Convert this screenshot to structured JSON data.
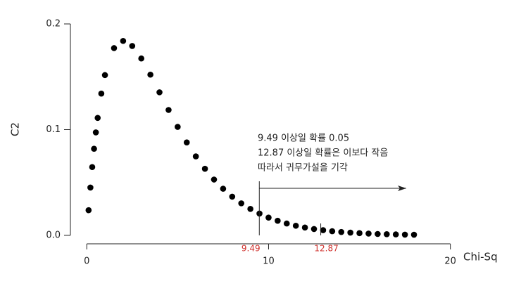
{
  "chart_data": {
    "type": "scatter",
    "y_label": "C2",
    "x_label": "Chi-Sq",
    "x": [
      0.1,
      0.2,
      0.3,
      0.4,
      0.5,
      0.6,
      0.8,
      1.0,
      1.5,
      2.0,
      2.5,
      3.0,
      3.5,
      4.0,
      4.5,
      5.0,
      5.5,
      6.0,
      6.5,
      7.0,
      7.5,
      8.0,
      8.5,
      9.0,
      9.5,
      10.0,
      10.5,
      11.0,
      11.5,
      12.0,
      12.5,
      13.0,
      13.5,
      14.0,
      14.5,
      15.0,
      15.5,
      16.0,
      16.5,
      17.0,
      17.5,
      18.0
    ],
    "values": [
      0.0238,
      0.0452,
      0.0646,
      0.0819,
      0.0974,
      0.1111,
      0.1341,
      0.1516,
      0.1771,
      0.1839,
      0.1791,
      0.1673,
      0.152,
      0.1353,
      0.1186,
      0.1026,
      0.0879,
      0.0747,
      0.063,
      0.0528,
      0.0441,
      0.0366,
      0.0303,
      0.025,
      0.0206,
      0.0168,
      0.0138,
      0.0112,
      0.0091,
      0.0074,
      0.006,
      0.0049,
      0.0039,
      0.0032,
      0.0026,
      0.0021,
      0.0017,
      0.0013,
      0.0011,
      0.0009,
      0.0007,
      0.0006
    ],
    "color": "#000000",
    "xlim": [
      -0.9,
      20.4
    ],
    "ylim": [
      -0.008,
      0.206
    ],
    "xticks": [
      0,
      10,
      20
    ],
    "yticks": [
      {
        "value": 0,
        "label": "0.0"
      },
      0.1,
      0.2
    ],
    "vlines": [
      9.49,
      12.87
    ],
    "vline_label_color": "#d0312d",
    "annotations": [
      "9.49 이상일 확률 0.05",
      "12.87 이상일 확률은 이보다 작음",
      "따라서 귀무가설을 기각"
    ]
  }
}
